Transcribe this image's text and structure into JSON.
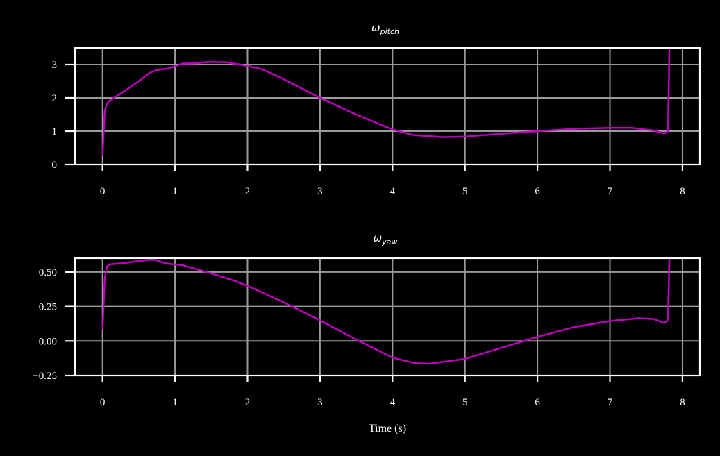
{
  "chart_data": [
    {
      "type": "line",
      "title": "ω_pitch",
      "title_main": "ω",
      "title_sub": "pitch",
      "xlabel": "",
      "ylabel": "",
      "xlim": [
        -0.38,
        8.24
      ],
      "ylim": [
        0,
        3.5
      ],
      "xticks": [
        0,
        1,
        2,
        3,
        4,
        5,
        6,
        7,
        8
      ],
      "yticks": [
        0,
        1,
        2,
        3
      ],
      "ytick_labels": [
        "0",
        "1",
        "2",
        "3"
      ],
      "grid": true,
      "line_color": "#bf00bf",
      "series": [
        {
          "name": "omega_pitch",
          "x": [
            0,
            0.03,
            0.06,
            0.1,
            0.3,
            0.5,
            0.65,
            0.75,
            0.9,
            1.0,
            1.1,
            1.3,
            1.45,
            1.7,
            2.0,
            2.2,
            2.5,
            3.0,
            3.5,
            4.0,
            4.3,
            4.7,
            5.0,
            5.5,
            6.0,
            6.5,
            7.0,
            7.3,
            7.6,
            7.75,
            7.8,
            7.82
          ],
          "values": [
            0.25,
            1.6,
            1.82,
            1.92,
            2.2,
            2.5,
            2.75,
            2.84,
            2.88,
            2.95,
            3.03,
            3.04,
            3.08,
            3.07,
            2.96,
            2.86,
            2.56,
            2.0,
            1.5,
            1.05,
            0.88,
            0.82,
            0.84,
            0.92,
            1.0,
            1.07,
            1.1,
            1.1,
            1.02,
            0.93,
            1.0,
            3.5
          ]
        }
      ]
    },
    {
      "type": "line",
      "title": "ω_yaw",
      "title_main": "ω",
      "title_sub": "yaw",
      "xlabel": "Time (s)",
      "ylabel": "",
      "xlim": [
        -0.38,
        8.24
      ],
      "ylim": [
        -0.25,
        0.6
      ],
      "xticks": [
        0,
        1,
        2,
        3,
        4,
        5,
        6,
        7,
        8
      ],
      "yticks": [
        -0.25,
        0.0,
        0.25,
        0.5
      ],
      "ytick_labels": [
        "−0.25",
        "0.00",
        "0.25",
        "0.50"
      ],
      "grid": true,
      "line_color": "#bf00bf",
      "series": [
        {
          "name": "omega_yaw",
          "x": [
            0,
            0.03,
            0.06,
            0.1,
            0.3,
            0.5,
            0.7,
            0.9,
            1.1,
            1.3,
            1.5,
            1.8,
            2.0,
            2.5,
            3.0,
            3.5,
            4.0,
            4.3,
            4.5,
            5.0,
            5.5,
            6.0,
            6.5,
            7.0,
            7.4,
            7.6,
            7.75,
            7.8,
            7.82
          ],
          "values": [
            0.08,
            0.45,
            0.54,
            0.555,
            0.565,
            0.58,
            0.59,
            0.56,
            0.55,
            0.52,
            0.49,
            0.44,
            0.4,
            0.28,
            0.15,
            0.01,
            -0.12,
            -0.16,
            -0.165,
            -0.13,
            -0.05,
            0.03,
            0.1,
            0.145,
            0.165,
            0.16,
            0.13,
            0.15,
            0.6
          ]
        }
      ]
    }
  ],
  "x_tick_labels": [
    "0",
    "1",
    "2",
    "3",
    "4",
    "5",
    "6",
    "7",
    "8"
  ]
}
